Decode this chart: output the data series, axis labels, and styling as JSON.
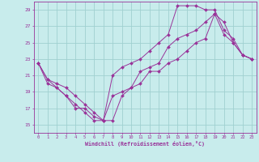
{
  "xlabel": "Windchill (Refroidissement éolien,°C)",
  "background_color": "#c8ecec",
  "grid_color": "#a0d0d0",
  "line_color": "#993399",
  "xlim": [
    -0.5,
    23.5
  ],
  "ylim": [
    14.0,
    30.0
  ],
  "yticks": [
    15,
    17,
    19,
    21,
    23,
    25,
    27,
    29
  ],
  "xticks": [
    0,
    1,
    2,
    3,
    4,
    5,
    6,
    7,
    8,
    9,
    10,
    11,
    12,
    13,
    14,
    15,
    16,
    17,
    18,
    19,
    20,
    21,
    22,
    23
  ],
  "series1_x": [
    0,
    1,
    2,
    3,
    4,
    5,
    6,
    7,
    8,
    9,
    10,
    11,
    12,
    13,
    14,
    15,
    16,
    17,
    18,
    19,
    20,
    21,
    22,
    23
  ],
  "series1_y": [
    22.5,
    20.5,
    20.0,
    19.5,
    18.5,
    17.5,
    16.5,
    15.5,
    15.5,
    18.5,
    19.5,
    21.5,
    22.0,
    22.5,
    24.5,
    25.5,
    26.0,
    26.5,
    27.5,
    28.5,
    26.0,
    25.0,
    23.5,
    23.0
  ],
  "series2_x": [
    0,
    1,
    2,
    3,
    4,
    5,
    6,
    7,
    8,
    9,
    10,
    11,
    12,
    13,
    14,
    15,
    16,
    17,
    18,
    19,
    20,
    21,
    22,
    23
  ],
  "series2_y": [
    22.5,
    20.5,
    19.5,
    18.5,
    17.5,
    16.5,
    15.5,
    15.5,
    21.0,
    22.0,
    22.5,
    23.0,
    24.0,
    25.0,
    26.0,
    29.5,
    29.5,
    29.5,
    29.0,
    29.0,
    26.5,
    25.5,
    23.5,
    23.0
  ],
  "series3_x": [
    0,
    1,
    2,
    3,
    4,
    5,
    6,
    7,
    8,
    9,
    10,
    11,
    12,
    13,
    14,
    15,
    16,
    17,
    18,
    19,
    20,
    21,
    22,
    23
  ],
  "series3_y": [
    22.5,
    20.0,
    19.5,
    18.5,
    17.0,
    17.0,
    16.0,
    15.5,
    18.5,
    19.0,
    19.5,
    20.0,
    21.5,
    21.5,
    22.5,
    23.0,
    24.0,
    25.0,
    25.5,
    28.5,
    27.5,
    25.0,
    23.5,
    23.0
  ]
}
